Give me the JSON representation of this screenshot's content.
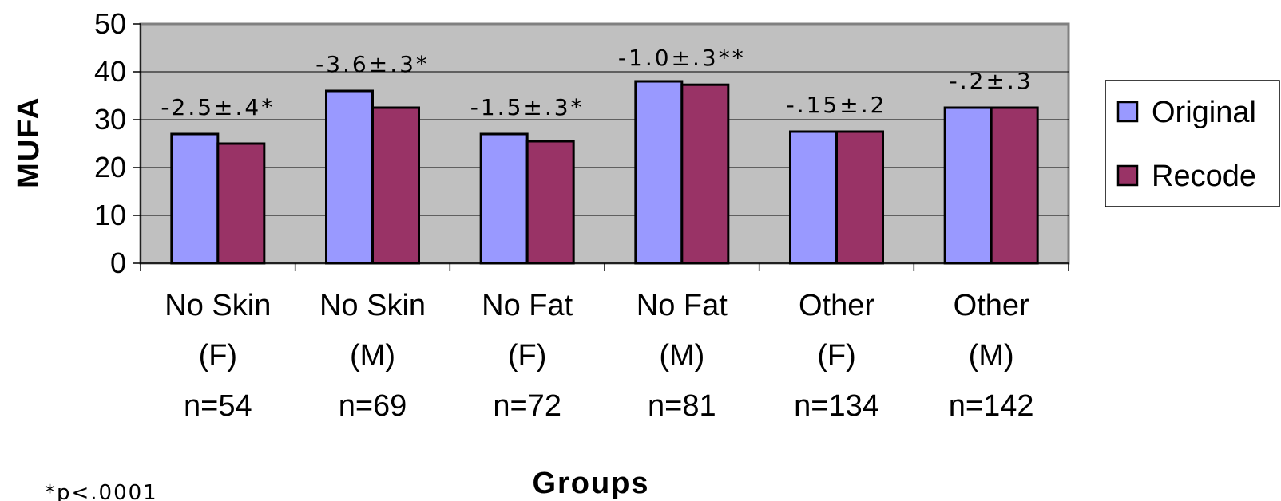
{
  "chart_data": {
    "type": "bar",
    "categories": [
      [
        "No Skin",
        "(F)",
        "n=54"
      ],
      [
        "No Skin",
        "(M)",
        "n=69"
      ],
      [
        "No Fat",
        "(F)",
        "n=72"
      ],
      [
        "No Fat",
        "(M)",
        "n=81"
      ],
      [
        "Other",
        "(F)",
        "n=134"
      ],
      [
        "Other",
        "(M)",
        "n=142"
      ]
    ],
    "series": [
      {
        "name": "Original",
        "color": "#9999ff",
        "values": [
          27,
          36,
          27,
          38,
          27.5,
          32.5
        ]
      },
      {
        "name": "Recode",
        "color": "#993366",
        "values": [
          25,
          32.5,
          25.5,
          37.3,
          27.5,
          32.5
        ]
      }
    ],
    "annotations": [
      "-2.5±.4*",
      "-3.6±.3*",
      "-1.5±.3*",
      "-1.0±.3**",
      "-.15±.2",
      "-.2±.3"
    ],
    "xlabel": "Groups",
    "ylabel": "MUFA",
    "ylim": [
      0,
      50
    ],
    "yticks": [
      0,
      10,
      20,
      30,
      40,
      50
    ],
    "grid": true,
    "plot_background": "#c0c0c0",
    "legend_position": "right",
    "footnote": "*p<.0001"
  }
}
